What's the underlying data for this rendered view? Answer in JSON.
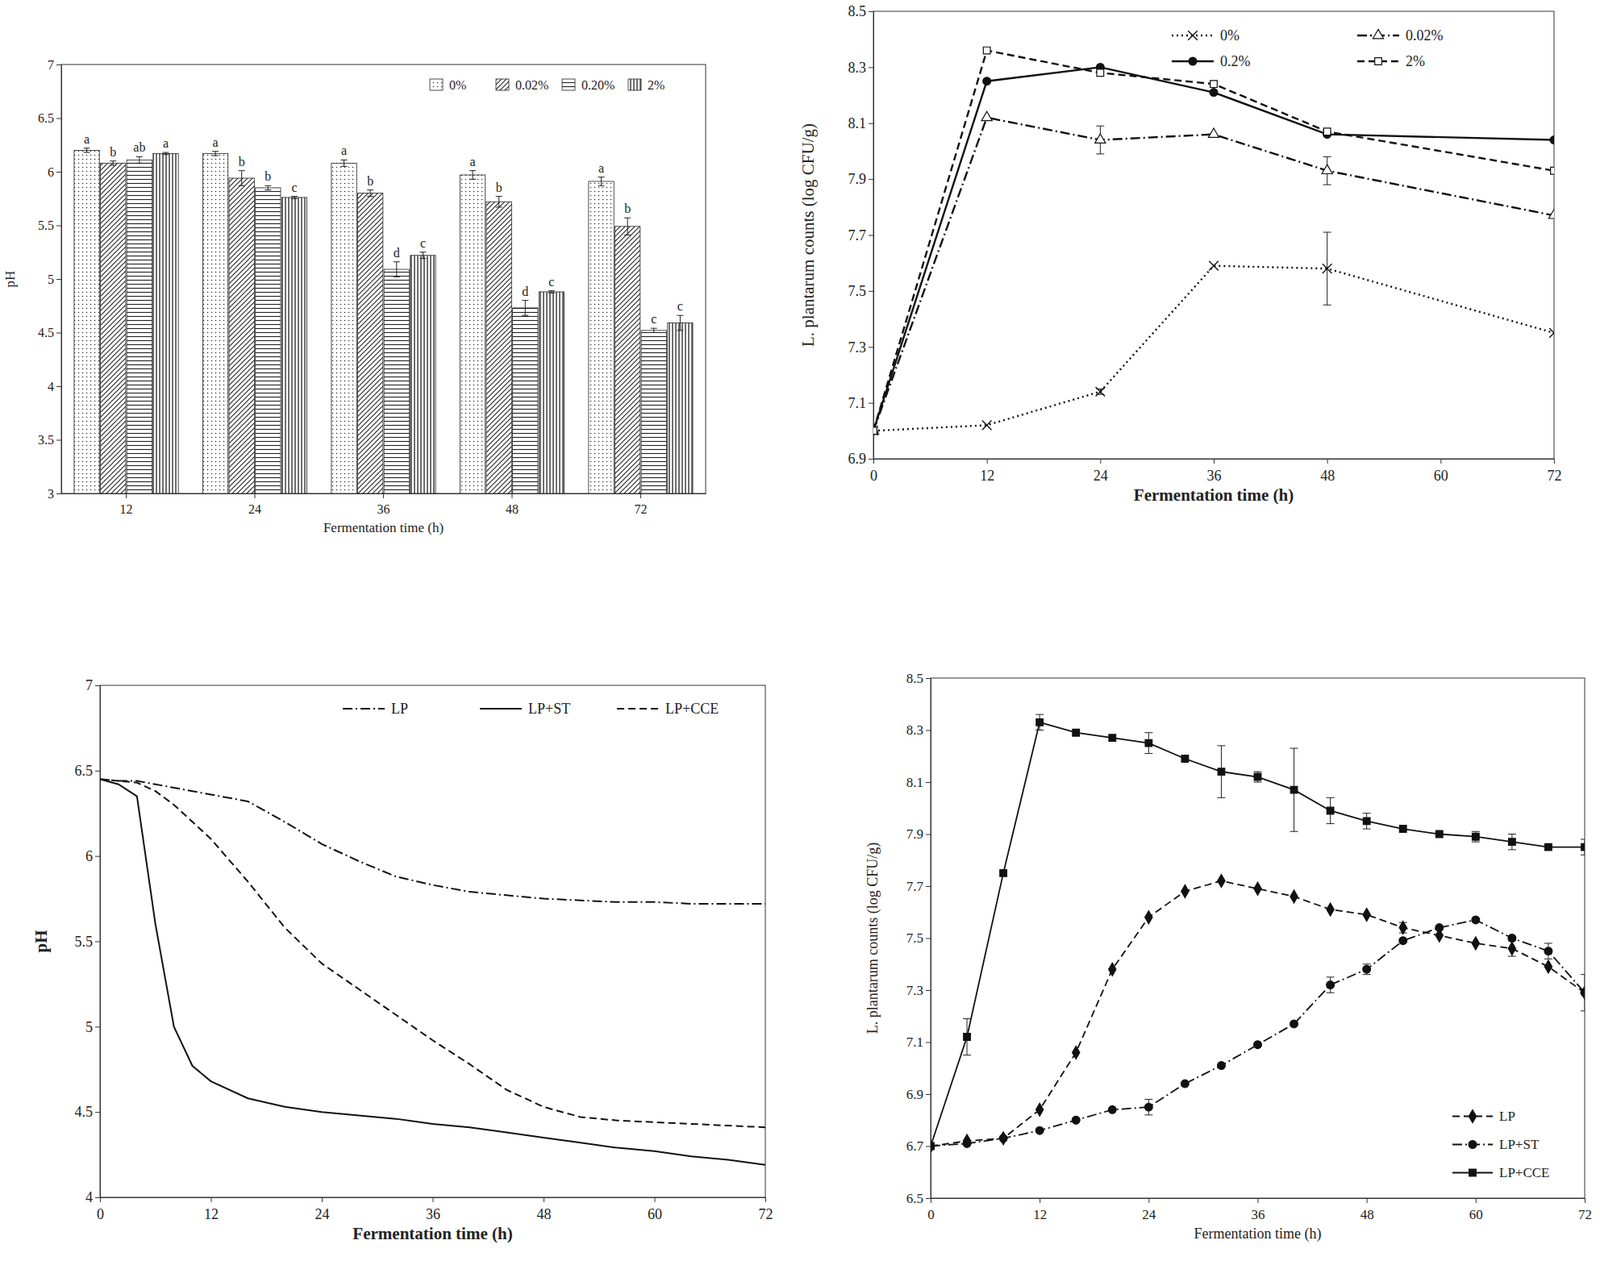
{
  "chart_data": [
    {
      "type": "bar",
      "x_label": "Fermentation time (h)",
      "y_label": "pH",
      "categories": [
        "12",
        "24",
        "36",
        "48",
        "72"
      ],
      "ylim": [
        3,
        7
      ],
      "yticks": [
        3,
        3.5,
        4,
        4.5,
        5,
        5.5,
        6,
        6.5,
        7
      ],
      "legend": "top-right",
      "grid": false,
      "series": [
        {
          "name": "0%",
          "values": [
            6.2,
            6.17,
            6.08,
            5.97,
            5.91
          ],
          "errors": [
            0.02,
            0.02,
            0.03,
            0.04,
            0.04
          ],
          "annotations": [
            "a",
            "a",
            "a",
            "a",
            "a"
          ]
        },
        {
          "name": "0.02%",
          "values": [
            6.08,
            5.94,
            5.8,
            5.72,
            5.49
          ],
          "errors": [
            0.02,
            0.07,
            0.03,
            0.05,
            0.08
          ],
          "annotations": [
            "b",
            "b",
            "b",
            "b",
            "b"
          ]
        },
        {
          "name": "0.20%",
          "values": [
            6.11,
            5.85,
            5.09,
            4.73,
            4.52
          ],
          "errors": [
            0.03,
            0.02,
            0.07,
            0.07,
            0.02
          ],
          "annotations": [
            "ab",
            "b",
            "d",
            "d",
            "c"
          ]
        },
        {
          "name": "2%",
          "values": [
            6.17,
            5.76,
            5.22,
            4.88,
            4.59
          ],
          "errors": [
            0.01,
            0.01,
            0.03,
            0.01,
            0.07
          ],
          "annotations": [
            "a",
            "c",
            "c",
            "c",
            "c"
          ]
        }
      ]
    },
    {
      "type": "line",
      "x_label": "Fermentation time (h)",
      "y_label": "L. plantarum counts (log CFU/g)",
      "x": [
        0,
        12,
        24,
        36,
        48,
        72
      ],
      "xlim": [
        0,
        72
      ],
      "xticks": [
        0,
        12,
        24,
        36,
        48,
        60,
        72
      ],
      "ylim": [
        6.9,
        8.5
      ],
      "yticks": [
        6.9,
        7.1,
        7.3,
        7.5,
        7.7,
        7.9,
        8.1,
        8.3,
        8.5
      ],
      "legend": "top-right",
      "grid": false,
      "series": [
        {
          "name": "0%",
          "marker": "x",
          "line_style": "dotted",
          "values": [
            7.0,
            7.02,
            7.14,
            7.59,
            7.58,
            7.35
          ],
          "errors": [
            null,
            null,
            0.01,
            null,
            0.13,
            null
          ]
        },
        {
          "name": "0.02%",
          "marker": "triangle-open",
          "line_style": "dashdot",
          "values": [
            7.0,
            8.12,
            8.04,
            8.06,
            7.93,
            7.77
          ],
          "errors": [
            null,
            null,
            0.05,
            null,
            0.05,
            null
          ]
        },
        {
          "name": "0.2%",
          "marker": "circle",
          "line_style": "solid",
          "values": [
            7.0,
            8.25,
            8.3,
            8.21,
            8.06,
            8.04
          ],
          "errors": [
            null,
            null,
            null,
            null,
            null,
            null
          ]
        },
        {
          "name": "2%",
          "marker": "square-open",
          "line_style": "dashed",
          "values": [
            7.0,
            8.36,
            8.28,
            8.24,
            8.07,
            7.93
          ],
          "errors": [
            null,
            null,
            null,
            null,
            null,
            null
          ]
        }
      ]
    },
    {
      "type": "line",
      "x_label": "Fermentation time (h)",
      "y_label": "pH",
      "x": [
        0,
        2,
        4,
        6,
        8,
        10,
        12,
        16,
        20,
        24,
        28,
        32,
        36,
        40,
        44,
        48,
        52,
        56,
        60,
        64,
        68,
        72
      ],
      "xlim": [
        0,
        72
      ],
      "xticks": [
        0,
        12,
        24,
        36,
        48,
        60,
        72
      ],
      "ylim": [
        4,
        7
      ],
      "yticks": [
        4,
        4.5,
        5,
        5.5,
        6,
        6.5,
        7
      ],
      "legend": "top-right",
      "grid": false,
      "series": [
        {
          "name": "LP",
          "line_style": "dashdot",
          "values": [
            6.45,
            6.44,
            6.44,
            6.42,
            6.4,
            6.38,
            6.36,
            6.32,
            6.2,
            6.07,
            5.97,
            5.88,
            5.83,
            5.79,
            5.77,
            5.75,
            5.74,
            5.73,
            5.73,
            5.72,
            5.72,
            5.72
          ]
        },
        {
          "name": "LP+ST",
          "line_style": "solid",
          "values": [
            6.45,
            6.42,
            6.35,
            5.6,
            5.0,
            4.77,
            4.68,
            4.58,
            4.53,
            4.5,
            4.48,
            4.46,
            4.43,
            4.41,
            4.38,
            4.35,
            4.32,
            4.29,
            4.27,
            4.24,
            4.22,
            4.19
          ]
        },
        {
          "name": "LP+CCE",
          "line_style": "dashed",
          "values": [
            6.45,
            6.44,
            6.43,
            6.38,
            6.3,
            6.2,
            6.1,
            5.85,
            5.58,
            5.37,
            5.22,
            5.07,
            4.92,
            4.78,
            4.63,
            4.53,
            4.47,
            4.45,
            4.44,
            4.43,
            4.42,
            4.41
          ]
        }
      ]
    },
    {
      "type": "line",
      "x_label": "Fermentation time (h)",
      "y_label": "L. plantarum counts (log CFU/g)",
      "x": [
        0,
        4,
        8,
        12,
        16,
        20,
        24,
        28,
        32,
        36,
        40,
        44,
        48,
        52,
        56,
        60,
        64,
        68,
        72
      ],
      "xlim": [
        0,
        72
      ],
      "xticks": [
        0,
        12,
        24,
        36,
        48,
        60,
        72
      ],
      "ylim": [
        6.5,
        8.5
      ],
      "yticks": [
        6.5,
        6.7,
        6.9,
        7.1,
        7.3,
        7.5,
        7.7,
        7.9,
        8.1,
        8.3,
        8.5
      ],
      "legend": "bottom-right",
      "grid": false,
      "series": [
        {
          "name": "LP",
          "marker": "diamond",
          "line_style": "dashed",
          "values": [
            6.7,
            6.72,
            6.73,
            6.84,
            7.06,
            7.38,
            7.58,
            7.68,
            7.72,
            7.69,
            7.66,
            7.61,
            7.59,
            7.54,
            7.51,
            7.48,
            7.46,
            7.39,
            7.29
          ],
          "errors": [
            null,
            null,
            null,
            null,
            null,
            null,
            null,
            null,
            null,
            null,
            null,
            null,
            null,
            0.02,
            null,
            null,
            0.03,
            null,
            null
          ]
        },
        {
          "name": "LP+ST",
          "marker": "circle",
          "line_style": "dashdot",
          "values": [
            6.7,
            6.71,
            6.73,
            6.76,
            6.8,
            6.84,
            6.85,
            6.94,
            7.01,
            7.09,
            7.17,
            7.32,
            7.38,
            7.49,
            7.54,
            7.57,
            7.5,
            7.45,
            7.29
          ],
          "errors": [
            null,
            null,
            null,
            null,
            null,
            null,
            0.03,
            null,
            null,
            null,
            null,
            0.03,
            0.02,
            null,
            null,
            null,
            null,
            0.03,
            0.07
          ]
        },
        {
          "name": "LP+CCE",
          "marker": "square",
          "line_style": "solid",
          "values": [
            6.7,
            7.12,
            7.75,
            8.33,
            8.29,
            8.27,
            8.25,
            8.19,
            8.14,
            8.12,
            8.07,
            7.99,
            7.95,
            7.92,
            7.9,
            7.89,
            7.87,
            7.85,
            7.85
          ],
          "errors": [
            null,
            0.07,
            null,
            0.03,
            null,
            null,
            0.04,
            null,
            0.1,
            0.02,
            0.16,
            0.05,
            0.03,
            null,
            null,
            0.02,
            0.03,
            null,
            0.03
          ]
        }
      ]
    }
  ]
}
